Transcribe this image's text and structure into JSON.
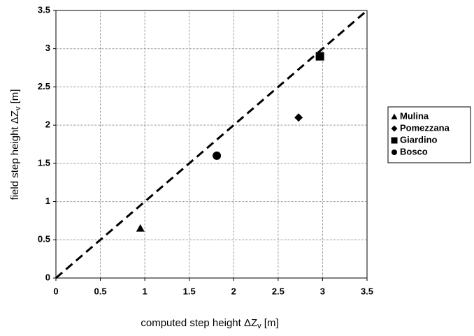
{
  "chart_data": {
    "type": "scatter",
    "xlabel": {
      "main": "computed step height ΔZ",
      "sub": "v",
      "unit": " [m]"
    },
    "ylabel": {
      "main": "field step height ΔZ",
      "sub": "v",
      "unit": " [m]"
    },
    "series": [
      {
        "name": "Mulina",
        "marker": "triangle",
        "color": "#000000",
        "x": [
          0.95
        ],
        "values": [
          0.65
        ]
      },
      {
        "name": "Pomezzana",
        "marker": "diamond",
        "color": "#000000",
        "x": [
          2.73
        ],
        "values": [
          2.1
        ]
      },
      {
        "name": "Giardino",
        "marker": "square",
        "color": "#000000",
        "x": [
          2.97
        ],
        "values": [
          2.9
        ]
      },
      {
        "name": "Bosco",
        "marker": "circle",
        "color": "#000000",
        "x": [
          1.81
        ],
        "values": [
          1.6
        ]
      }
    ],
    "reference_line": {
      "x": [
        0,
        3.5
      ],
      "values": [
        0,
        3.5
      ],
      "color": "#000000",
      "dashed": true
    },
    "xlim": [
      0,
      3.5
    ],
    "ylim": [
      0,
      3.5
    ],
    "xticks": [
      0,
      0.5,
      1,
      1.5,
      2,
      2.5,
      3,
      3.5
    ],
    "yticks": [
      0,
      0.5,
      1,
      1.5,
      2,
      2.5,
      3,
      3.5
    ],
    "grid": true,
    "legend": "right"
  }
}
